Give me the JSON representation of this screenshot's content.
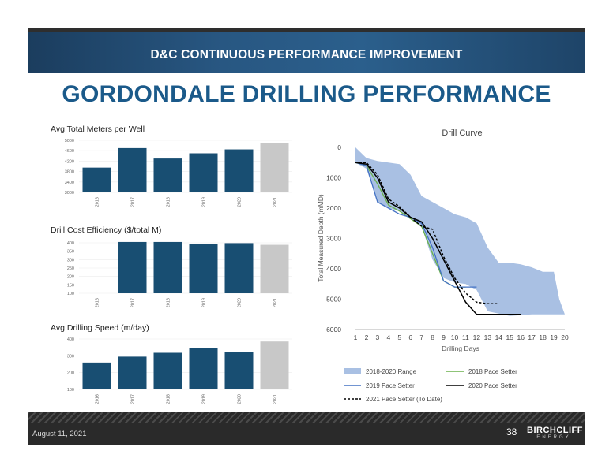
{
  "header": {
    "banner_title": "D&C CONTINUOUS PERFORMANCE IMPROVEMENT",
    "main_title": "GORDONDALE DRILLING PERFORMANCE"
  },
  "colors": {
    "bar_dark": "#184e72",
    "bar_light": "#c8c8c8",
    "range_fill": "#a9c0e3",
    "pace_2018": "#6ab04c",
    "pace_2019": "#4472c4",
    "pace_2020": "#000000",
    "pace_2021": "#000000"
  },
  "bar_charts": [
    {
      "title": "Avg Total Meters per Well",
      "categories": [
        "2016",
        "2017",
        "2018",
        "2019",
        "2020",
        "2021"
      ],
      "values": [
        3950,
        4700,
        4300,
        4500,
        4650,
        4900
      ],
      "ylim": [
        3000,
        5000
      ],
      "yticks": [
        "3000",
        "3400",
        "3800",
        "4200",
        "4600",
        "5000"
      ],
      "highlight_last": true
    },
    {
      "title": "Drill Cost Efficiency ($/total M)",
      "categories": [
        "2016",
        "2017",
        "2018",
        "2019",
        "2020",
        "2021"
      ],
      "values": [
        null,
        405,
        405,
        395,
        398,
        388
      ],
      "ylim": [
        100,
        400
      ],
      "yticks": [
        "100",
        "150",
        "200",
        "250",
        "300",
        "350",
        "400"
      ],
      "highlight_last": true
    },
    {
      "title": "Avg Drilling Speed (m/day)",
      "categories": [
        "2016",
        "2017",
        "2018",
        "2019",
        "2020",
        "2021"
      ],
      "values": [
        260,
        295,
        318,
        348,
        322,
        385
      ],
      "ylim": [
        100,
        400
      ],
      "yticks": [
        "100",
        "200",
        "300",
        "400"
      ],
      "highlight_last": true
    }
  ],
  "chart_data": [
    {
      "type": "bar",
      "title": "Avg Total Meters per Well",
      "categories": [
        "2016",
        "2017",
        "2018",
        "2019",
        "2020",
        "2021"
      ],
      "values": [
        3950,
        4700,
        4300,
        4500,
        4650,
        4900
      ],
      "ylim": [
        3000,
        5000
      ]
    },
    {
      "type": "bar",
      "title": "Drill Cost Efficiency ($/total M)",
      "categories": [
        "2016",
        "2017",
        "2018",
        "2019",
        "2020",
        "2021"
      ],
      "values": [
        null,
        405,
        405,
        395,
        398,
        388
      ],
      "ylim": [
        100,
        400
      ]
    },
    {
      "type": "bar",
      "title": "Avg Drilling Speed (m/day)",
      "categories": [
        "2016",
        "2017",
        "2018",
        "2019",
        "2020",
        "2021"
      ],
      "values": [
        260,
        295,
        318,
        348,
        322,
        385
      ],
      "ylim": [
        100,
        400
      ]
    },
    {
      "type": "line",
      "title": "Drill Curve",
      "xlabel": "Drilling Days",
      "ylabel": "Total Measured Depth (mMD)",
      "xlim": [
        1,
        20
      ],
      "ylim": [
        6000,
        0
      ],
      "xticks": [
        "1",
        "2",
        "3",
        "4",
        "5",
        "6",
        "7",
        "8",
        "9",
        "10",
        "11",
        "12",
        "13",
        "14",
        "15",
        "16",
        "17",
        "18",
        "19",
        "20"
      ],
      "yticks": [
        "0",
        "1000",
        "2000",
        "3000",
        "4000",
        "5000",
        "6000"
      ],
      "range": {
        "name": "2018-2020 Range",
        "upper": [
          [
            1,
            0
          ],
          [
            2,
            350
          ],
          [
            3,
            450
          ],
          [
            4,
            500
          ],
          [
            5,
            550
          ],
          [
            6,
            900
          ],
          [
            7,
            1600
          ],
          [
            8,
            1800
          ],
          [
            9,
            2000
          ],
          [
            10,
            2200
          ],
          [
            11,
            2300
          ],
          [
            12,
            2500
          ],
          [
            13,
            3300
          ],
          [
            14,
            3800
          ],
          [
            15,
            3800
          ],
          [
            16,
            3850
          ],
          [
            17,
            3950
          ],
          [
            18,
            4100
          ],
          [
            19,
            4100
          ],
          [
            19.5,
            5000
          ],
          [
            20,
            5500
          ]
        ],
        "lower": [
          [
            20,
            5500
          ],
          [
            17,
            5500
          ],
          [
            15,
            5550
          ],
          [
            13,
            5400
          ],
          [
            12,
            4700
          ],
          [
            11,
            4500
          ],
          [
            10,
            4450
          ],
          [
            9,
            4300
          ],
          [
            8,
            3700
          ],
          [
            7,
            2600
          ],
          [
            6,
            2350
          ],
          [
            5,
            2100
          ],
          [
            4,
            2000
          ],
          [
            3,
            1800
          ],
          [
            2,
            700
          ],
          [
            1,
            500
          ]
        ]
      },
      "series": [
        {
          "name": "2018 Pace Setter",
          "style": "solid",
          "points": [
            [
              1,
              500
            ],
            [
              2,
              600
            ],
            [
              3,
              1200
            ],
            [
              4,
              1900
            ],
            [
              5,
              2100
            ],
            [
              6,
              2350
            ],
            [
              7,
              2600
            ],
            [
              8,
              3500
            ],
            [
              9,
              4400
            ],
            [
              10,
              4600
            ],
            [
              11,
              4600
            ]
          ]
        },
        {
          "name": "2019 Pace Setter",
          "style": "solid",
          "points": [
            [
              1,
              500
            ],
            [
              2,
              600
            ],
            [
              3,
              1800
            ],
            [
              4,
              2000
            ],
            [
              5,
              2200
            ],
            [
              6,
              2300
            ],
            [
              7,
              2500
            ],
            [
              8,
              3300
            ],
            [
              9,
              4400
            ],
            [
              10,
              4600
            ],
            [
              11,
              4600
            ],
            [
              12,
              4600
            ]
          ]
        },
        {
          "name": "2020 Pace Setter",
          "style": "solid",
          "points": [
            [
              1,
              500
            ],
            [
              2,
              550
            ],
            [
              3,
              1000
            ],
            [
              4,
              1800
            ],
            [
              5,
              2000
            ],
            [
              6,
              2300
            ],
            [
              7,
              2450
            ],
            [
              8,
              3000
            ],
            [
              9,
              3700
            ],
            [
              10,
              4400
            ],
            [
              11,
              5100
            ],
            [
              12,
              5500
            ],
            [
              14,
              5500
            ],
            [
              16,
              5500
            ]
          ]
        },
        {
          "name": "2021 Pace Setter (To Date)",
          "style": "dashed",
          "points": [
            [
              1,
              500
            ],
            [
              2,
              500
            ],
            [
              3,
              900
            ],
            [
              4,
              1700
            ],
            [
              5,
              1950
            ],
            [
              6,
              2300
            ],
            [
              7,
              2600
            ],
            [
              8,
              2700
            ],
            [
              9,
              3600
            ],
            [
              10,
              4300
            ],
            [
              11,
              4800
            ],
            [
              12,
              5100
            ],
            [
              13,
              5150
            ],
            [
              14,
              5150
            ]
          ]
        }
      ]
    }
  ],
  "footer": {
    "date": "August 11, 2021",
    "page": "38",
    "logo_main": "BIRCHCLIFF",
    "logo_sub": "ENERGY"
  }
}
